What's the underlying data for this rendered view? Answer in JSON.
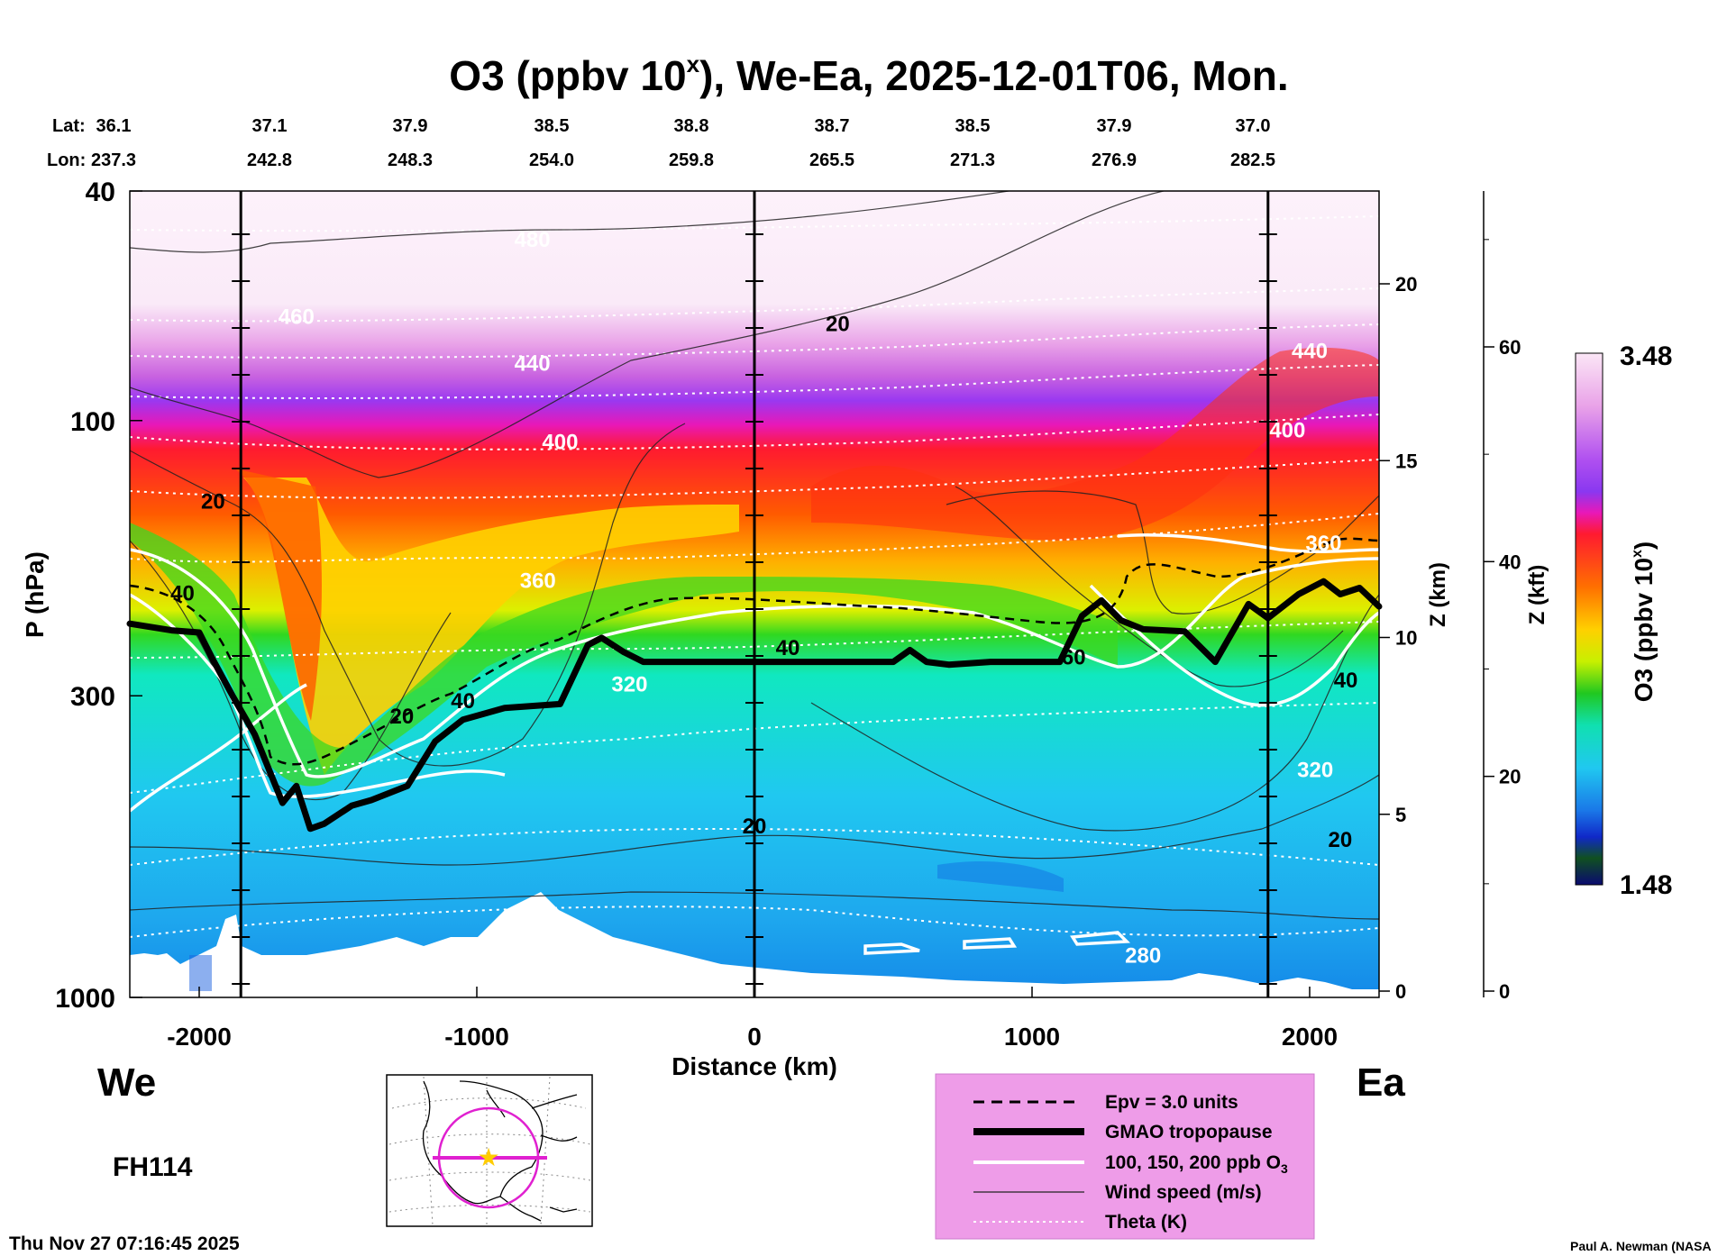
{
  "chart_data": {
    "type": "heatmap",
    "title": "O3 (ppbv 10",
    "title_sup": "x",
    "title_rest": "), We-Ea, 2025-12-01T06, Mon.",
    "xlabel": "Distance (km)",
    "ylabel": "P (hPa)",
    "ylabel_right_km": "Z (km)",
    "ylabel_right_kft": "Z (kft)",
    "xlim": [
      -2250,
      2250
    ],
    "ylim": [
      1000,
      40
    ],
    "x_ticks": [
      "-2000",
      "-1000",
      "0",
      "1000",
      "2000"
    ],
    "x_tick_values": [
      -2000,
      -1000,
      0,
      1000,
      2000
    ],
    "p_ticks": [
      "40",
      "100",
      "300",
      "1000"
    ],
    "p_tick_values": [
      40,
      100,
      300,
      1000
    ],
    "z_km_ticks": [
      "20",
      "15",
      "10",
      "5",
      "0"
    ],
    "z_km_values": [
      20,
      15,
      10,
      5,
      0
    ],
    "z_kft_ticks": [
      "60",
      "40",
      "20",
      "0"
    ],
    "z_kft_values": [
      60,
      40,
      20,
      0
    ],
    "lat_label": "Lat:",
    "lon_label": "Lon:",
    "lat": [
      "36.1",
      "37.1",
      "37.9",
      "38.5",
      "38.8",
      "38.7",
      "38.5",
      "37.9",
      "37.0"
    ],
    "lon": [
      "237.3",
      "242.8",
      "248.3",
      "254.0",
      "259.8",
      "265.5",
      "271.3",
      "276.9",
      "282.5"
    ],
    "vertical_markers_km": [
      -1850,
      0,
      1850
    ],
    "colorbar": {
      "label": "O3 (ppbv 10",
      "label_sup": "x",
      "label_end": ")",
      "max": "3.48",
      "min": "1.48"
    },
    "tropopause": {
      "x": [
        -2250,
        -2100,
        -2000,
        -1950,
        -1880,
        -1800,
        -1700,
        -1650,
        -1600,
        -1550,
        -1450,
        -1380,
        -1250,
        -1150,
        -1050,
        -900,
        -700,
        -600,
        -550,
        -470,
        -400,
        -300,
        -100,
        0,
        200,
        500,
        560,
        620,
        700,
        850,
        1000,
        1100,
        1180,
        1250,
        1320,
        1400,
        1550,
        1660,
        1780,
        1850,
        1960,
        2050,
        2110,
        2180,
        2250
      ],
      "p": [
        225,
        231,
        233,
        260,
        300,
        350,
        460,
        430,
        510,
        500,
        465,
        455,
        430,
        360,
        330,
        315,
        310,
        245,
        238,
        252,
        262,
        262,
        262,
        262,
        262,
        262,
        250,
        262,
        265,
        262,
        262,
        262,
        218,
        205,
        222,
        230,
        232,
        262,
        208,
        220,
        200,
        190,
        200,
        195,
        210
      ]
    },
    "theta_labels": [
      {
        "x": -800,
        "p": 50,
        "t": "480"
      },
      {
        "x": -1650,
        "p": 68,
        "t": "460"
      },
      {
        "x": -800,
        "p": 82,
        "t": "440"
      },
      {
        "x": 2000,
        "p": 78,
        "t": "440"
      },
      {
        "x": -700,
        "p": 112,
        "t": "400"
      },
      {
        "x": 1920,
        "p": 107,
        "t": "400"
      },
      {
        "x": -780,
        "p": 195,
        "t": "360"
      },
      {
        "x": 2050,
        "p": 168,
        "t": "360"
      },
      {
        "x": -450,
        "p": 295,
        "t": "320"
      },
      {
        "x": 2020,
        "p": 415,
        "t": "320"
      },
      {
        "x": 1400,
        "p": 870,
        "t": "280"
      }
    ],
    "wind_labels": [
      {
        "x": 300,
        "p": 70,
        "t": "20"
      },
      {
        "x": -1950,
        "p": 142,
        "t": "20"
      },
      {
        "x": -2060,
        "p": 205,
        "t": "40"
      },
      {
        "x": 120,
        "p": 255,
        "t": "40"
      },
      {
        "x": 1150,
        "p": 265,
        "t": "60"
      },
      {
        "x": 2130,
        "p": 290,
        "t": "40"
      },
      {
        "x": -1270,
        "p": 335,
        "t": "20"
      },
      {
        "x": -1050,
        "p": 315,
        "t": "40"
      },
      {
        "x": 0,
        "p": 520,
        "t": "20"
      },
      {
        "x": 2110,
        "p": 548,
        "t": "20"
      }
    ],
    "legend": [
      {
        "style": "dashed",
        "label": "Epv = 3.0 units"
      },
      {
        "style": "thick",
        "label": "GMAO tropopause"
      },
      {
        "style": "white",
        "label": "100, 150, 200 ppb O",
        "sub": "3"
      },
      {
        "style": "thin",
        "label": "Wind speed (m/s)"
      },
      {
        "style": "dotted",
        "label": "Theta (K)"
      }
    ]
  },
  "labels": {
    "west": "We",
    "east": "Ea",
    "forecast_hour": "FH114",
    "timestamp": "Thu Nov 27 07:16:45 2025",
    "credit": "Paul A. Newman (NASA"
  },
  "colors": {
    "legend_bg": "#ee9ce8",
    "map_ring": "#e020d0",
    "map_star": "#ffcc00"
  }
}
